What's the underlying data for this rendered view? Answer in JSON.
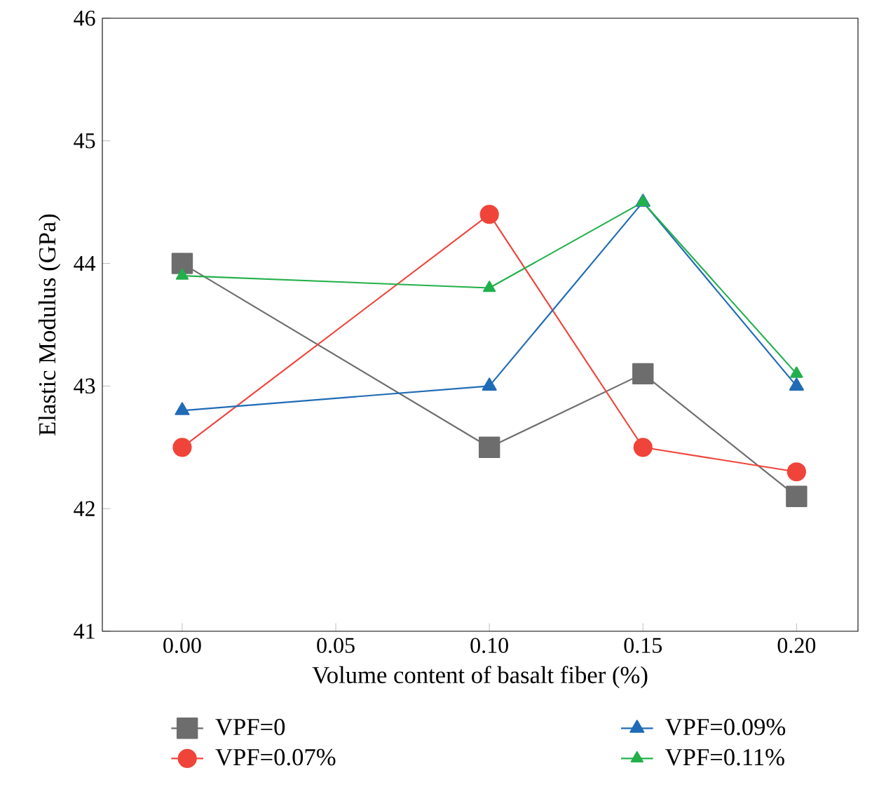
{
  "chart_data": {
    "type": "line",
    "xlabel": "Volume content of basalt fiber (%)",
    "ylabel": "Elastic Modulus (GPa)",
    "x": [
      0.0,
      0.1,
      0.15,
      0.2
    ],
    "xlim": [
      -0.026,
      0.22
    ],
    "ylim": [
      41,
      46
    ],
    "xticks": [
      {
        "value": 0.0,
        "label": "0.00"
      },
      {
        "value": 0.05,
        "label": "0.05"
      },
      {
        "value": 0.1,
        "label": "0.10"
      },
      {
        "value": 0.15,
        "label": "0.15"
      },
      {
        "value": 0.2,
        "label": "0.20"
      }
    ],
    "yticks": [
      41,
      42,
      43,
      44,
      45,
      46
    ],
    "grid": false,
    "legend": "bottom",
    "line_style": "solid",
    "series": [
      {
        "name": "VPF=0",
        "color": "#6d6d6d",
        "marker": "square",
        "values": [
          44.0,
          42.5,
          43.1,
          42.1
        ]
      },
      {
        "name": "VPF=0.07%",
        "color": "#f0443a",
        "marker": "circle",
        "values": [
          42.5,
          44.4,
          42.5,
          42.3
        ]
      },
      {
        "name": "VPF=0.09%",
        "color": "#1f6bb5",
        "marker": "triangle",
        "values": [
          42.8,
          43.0,
          44.5,
          43.0
        ]
      },
      {
        "name": "VPF=0.11%",
        "color": "#22b04b",
        "marker": "triangle",
        "values": [
          43.9,
          43.8,
          44.5,
          43.1
        ]
      }
    ]
  }
}
